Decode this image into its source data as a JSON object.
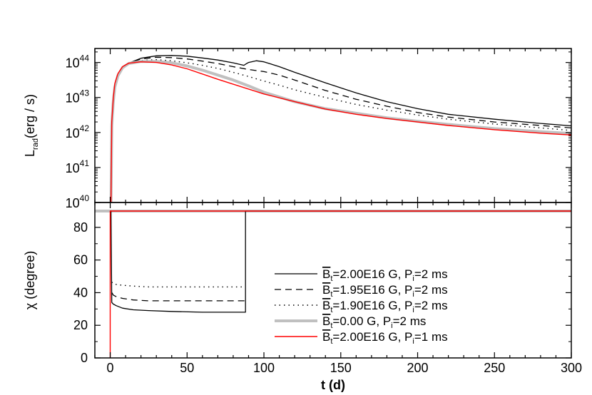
{
  "chart_data": [
    {
      "type": "line",
      "panel": "top",
      "ylabel_main": "L",
      "ylabel_sub": "rad",
      "ylabel_unit": "(erg / s)",
      "xlim": [
        -10,
        300
      ],
      "ylim_log10": [
        40,
        44.4
      ],
      "y_scale": "log",
      "y_ticks": [
        {
          "base": "10",
          "exp": "40",
          "v": 40
        },
        {
          "base": "10",
          "exp": "41",
          "v": 41
        },
        {
          "base": "10",
          "exp": "42",
          "v": 42
        },
        {
          "base": "10",
          "exp": "43",
          "v": 43
        },
        {
          "base": "10",
          "exp": "44",
          "v": 44
        }
      ],
      "series": [
        {
          "name": "B=2.00E16 G, Pi=2 ms",
          "color": "#000000",
          "style": "solid",
          "width": 1.3,
          "x": [
            0.5,
            1,
            2,
            3,
            5,
            8,
            12,
            20,
            30,
            40,
            50,
            60,
            70,
            80,
            87,
            88,
            90,
            95,
            100,
            110,
            120,
            140,
            160,
            180,
            200,
            220,
            250,
            280,
            300
          ],
          "log10y": [
            40.0,
            42.2,
            42.9,
            43.3,
            43.62,
            43.85,
            43.98,
            44.12,
            44.19,
            44.2,
            44.18,
            44.13,
            44.07,
            43.99,
            43.92,
            43.95,
            44.0,
            44.05,
            44.02,
            43.88,
            43.72,
            43.42,
            43.13,
            42.88,
            42.68,
            42.52,
            42.38,
            42.26,
            42.19
          ]
        },
        {
          "name": "B=1.95E16 G, Pi=2 ms",
          "color": "#000000",
          "style": "dash",
          "width": 1.3,
          "x": [
            0.5,
            1,
            2,
            3,
            5,
            8,
            12,
            20,
            30,
            40,
            50,
            60,
            70,
            80,
            90,
            100,
            110,
            120,
            140,
            160,
            180,
            200,
            220,
            250,
            280,
            300
          ],
          "log10y": [
            40.0,
            42.2,
            42.9,
            43.3,
            43.62,
            43.85,
            43.98,
            44.1,
            44.15,
            44.14,
            44.1,
            44.04,
            43.97,
            43.88,
            43.8,
            43.74,
            43.64,
            43.5,
            43.2,
            42.95,
            42.75,
            42.57,
            42.44,
            42.3,
            42.2,
            42.13
          ]
        },
        {
          "name": "B=1.90E16 G, Pi=2 ms",
          "color": "#000000",
          "style": "dot",
          "width": 1.4,
          "x": [
            0.5,
            1,
            2,
            3,
            5,
            8,
            12,
            20,
            30,
            40,
            50,
            60,
            70,
            80,
            90,
            100,
            110,
            120,
            140,
            160,
            180,
            200,
            220,
            250,
            280,
            300
          ],
          "log10y": [
            40.0,
            42.2,
            42.9,
            43.3,
            43.62,
            43.85,
            43.97,
            44.06,
            44.08,
            44.05,
            43.99,
            43.92,
            43.83,
            43.72,
            43.6,
            43.47,
            43.35,
            43.22,
            43.0,
            42.8,
            42.64,
            42.5,
            42.38,
            42.24,
            42.13,
            42.06
          ]
        },
        {
          "name": "B=0.00 G, Pi=2 ms",
          "color": "#c0c0c0",
          "style": "solid",
          "width": 4,
          "x": [
            0.5,
            1,
            2,
            3,
            5,
            8,
            12,
            20,
            30,
            40,
            50,
            60,
            70,
            80,
            90,
            100,
            120,
            140,
            160,
            180,
            200,
            220,
            250,
            280,
            300
          ],
          "log10y": [
            40.0,
            42.2,
            42.9,
            43.3,
            43.62,
            43.85,
            43.97,
            44.03,
            44.03,
            43.99,
            43.9,
            43.78,
            43.64,
            43.5,
            43.33,
            43.15,
            42.88,
            42.68,
            42.55,
            42.42,
            42.32,
            42.23,
            42.11,
            42.02,
            41.97
          ]
        },
        {
          "name": "B=2.00E16 G, Pi=1 ms",
          "color": "#ff0000",
          "style": "solid",
          "width": 1.4,
          "x": [
            0.5,
            1,
            2,
            3,
            5,
            8,
            12,
            20,
            30,
            40,
            50,
            60,
            70,
            80,
            90,
            100,
            120,
            140,
            160,
            180,
            200,
            220,
            250,
            280,
            300
          ],
          "log10y": [
            40.0,
            42.3,
            43.0,
            43.4,
            43.68,
            43.88,
            43.98,
            44.02,
            44.0,
            43.93,
            43.82,
            43.67,
            43.52,
            43.38,
            43.24,
            43.1,
            42.88,
            42.67,
            42.52,
            42.4,
            42.3,
            42.2,
            42.08,
            41.98,
            41.93
          ]
        }
      ]
    },
    {
      "type": "line",
      "panel": "bottom",
      "ylabel": "χ (degree)",
      "xlabel": "t (d)",
      "xlim": [
        -10,
        300
      ],
      "ylim": [
        0,
        90
      ],
      "x_ticks": [
        "0",
        "50",
        "100",
        "150",
        "200",
        "250",
        "300"
      ],
      "y_ticks": [
        "0",
        "20",
        "40",
        "60",
        "80"
      ],
      "legend_position": "bottom-right",
      "series": [
        {
          "name": "B=2.00E16 G, Pi=2 ms",
          "legend": {
            "B": "B",
            "sub": "t",
            "rest": "=2.00E16 G, P",
            "sub2": "i",
            "rest2": "=2 ms"
          },
          "color": "#000000",
          "style": "solid",
          "width": 1.3,
          "x": [
            0,
            0.5,
            1,
            2,
            4,
            8,
            15,
            25,
            40,
            60,
            80,
            88,
            88,
            100,
            150,
            200,
            250,
            300
          ],
          "y": [
            90,
            90,
            34,
            33,
            32,
            30.5,
            29.5,
            29,
            28.5,
            28,
            28,
            28,
            90,
            90,
            90,
            90,
            90,
            90
          ]
        },
        {
          "name": "B=1.95E16 G, Pi=2 ms",
          "legend": {
            "B": "B",
            "sub": "t",
            "rest": "=1.95E16 G, P",
            "sub2": "i",
            "rest2": "=2 ms"
          },
          "color": "#000000",
          "style": "dash",
          "width": 1.3,
          "x": [
            1,
            2,
            4,
            8,
            15,
            25,
            40,
            60,
            88
          ],
          "y": [
            40,
            38.5,
            37.5,
            36.5,
            35.5,
            35,
            35,
            35,
            35
          ]
        },
        {
          "name": "B=1.90E16 G, Pi=2 ms",
          "legend": {
            "B": "B",
            "sub": "t",
            "rest": "=1.90E16 G, P",
            "sub2": "i",
            "rest2": "=2 ms"
          },
          "color": "#000000",
          "style": "dot",
          "width": 1.4,
          "x": [
            1,
            2,
            4,
            8,
            15,
            25,
            40,
            60,
            88
          ],
          "y": [
            46.5,
            45.5,
            45,
            44.5,
            44,
            43.5,
            43.5,
            43.5,
            43.5
          ]
        },
        {
          "name": "B=0.00 G, Pi=2 ms",
          "legend": {
            "B": "B",
            "sub": "t",
            "rest": "=0.00 G, P",
            "sub2": "i",
            "rest2": "=2 ms"
          },
          "color": "#c0c0c0",
          "style": "solid",
          "width": 4,
          "x": [
            -10,
            300
          ],
          "y": [
            90,
            90
          ]
        },
        {
          "name": "B=2.00E16 G, Pi=1 ms",
          "legend": {
            "B": "B",
            "sub": "t",
            "rest": "=2.00E16 G, P",
            "sub2": "i",
            "rest2": "=1 ms"
          },
          "color": "#ff0000",
          "style": "solid",
          "width": 1.4,
          "x": [
            0,
            0,
            1,
            1,
            300
          ],
          "y": [
            0,
            90,
            90,
            90,
            90
          ]
        }
      ]
    }
  ]
}
